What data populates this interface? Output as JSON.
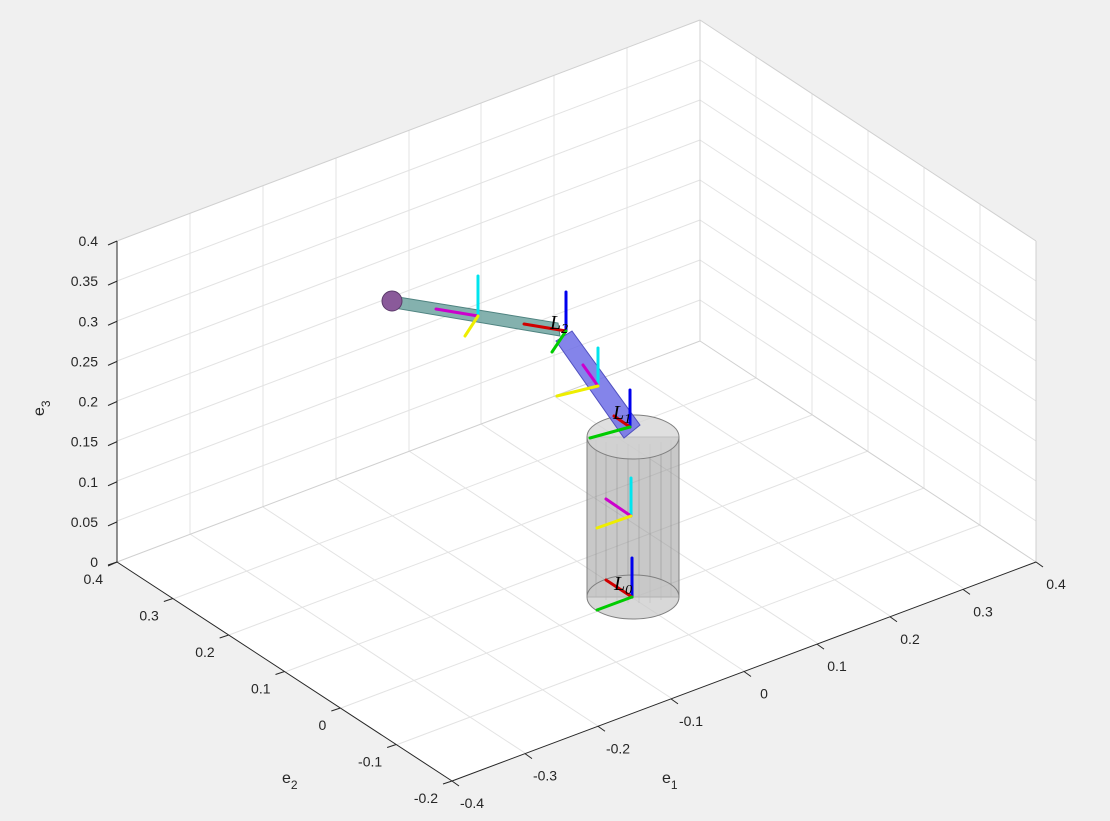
{
  "figure": {
    "xlabel": "e",
    "xlabel_sub": "1",
    "ylabel": "e",
    "ylabel_sub": "2",
    "zlabel": "e",
    "zlabel_sub": "3"
  },
  "chart_data": {
    "type": "3d-plot",
    "xlim": [
      -0.4,
      0.4
    ],
    "ylim": [
      -0.2,
      0.4
    ],
    "zlim": [
      0,
      0.4
    ],
    "x_ticks": [
      "-0.4",
      "-0.3",
      "-0.2",
      "-0.1",
      "0",
      "0.1",
      "0.2",
      "0.3",
      "0.4"
    ],
    "y_ticks": [
      "-0.2",
      "-0.1",
      "0",
      "0.1",
      "0.2",
      "0.3",
      "0.4"
    ],
    "z_ticks": [
      "0",
      "0.05",
      "0.1",
      "0.15",
      "0.2",
      "0.25",
      "0.3",
      "0.35",
      "0.4"
    ],
    "grid": true,
    "frame_labels": {
      "L0": {
        "base": "L",
        "sub": "0"
      },
      "L1": {
        "base": "L",
        "sub": "1"
      },
      "L2": {
        "base": "L",
        "sub": "2"
      }
    },
    "colors": {
      "base_cylinder": "#9a9a9a",
      "link1": "#6f6fe6",
      "link2": "#6fa3a0",
      "end_effector": "#8a5a9a",
      "axis_x": "#d00000",
      "axis_y": "#00cc00",
      "axis_z": "#0000ee",
      "com_x": "#cc00cc",
      "com_y": "#eeee00",
      "com_z": "#00e5ee"
    }
  }
}
